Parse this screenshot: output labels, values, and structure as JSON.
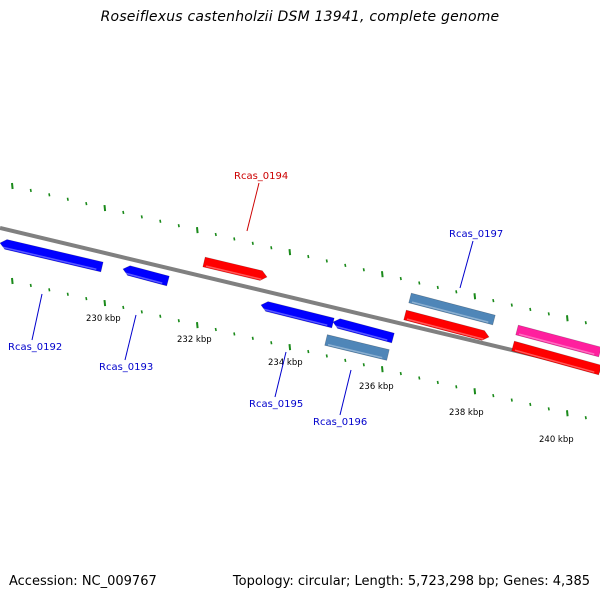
{
  "title": "Roseiflexus castenholzii DSM 13941, complete genome",
  "footer": {
    "accession": "Accession: NC_009767",
    "summary": "Topology: circular; Length: 5,723,298 bp; Genes: 4,385"
  },
  "colors": {
    "backbone": "#808080",
    "tick": "#1a8a1a",
    "forward_cds": "#ff0000",
    "reverse_cds": "#0000ff",
    "rna": "#4f86b8",
    "other": "#ff1f9e",
    "label_forward": "#cc0000",
    "label_reverse": "#0000cc"
  },
  "ruler": {
    "labels": [
      "230 kbp",
      "232 kbp",
      "234 kbp",
      "236 kbp",
      "238 kbp",
      "240 kbp"
    ]
  },
  "genes": [
    {
      "label": "Rcas_0192",
      "color": "reverse_cds"
    },
    {
      "label": "Rcas_0193",
      "color": "reverse_cds"
    },
    {
      "label": "Rcas_0194",
      "color": "forward_cds"
    },
    {
      "label": "Rcas_0195",
      "color": "reverse_cds"
    },
    {
      "label": "Rcas_0196",
      "color": "rna"
    },
    {
      "label": "Rcas_0197",
      "color": "rna"
    }
  ]
}
